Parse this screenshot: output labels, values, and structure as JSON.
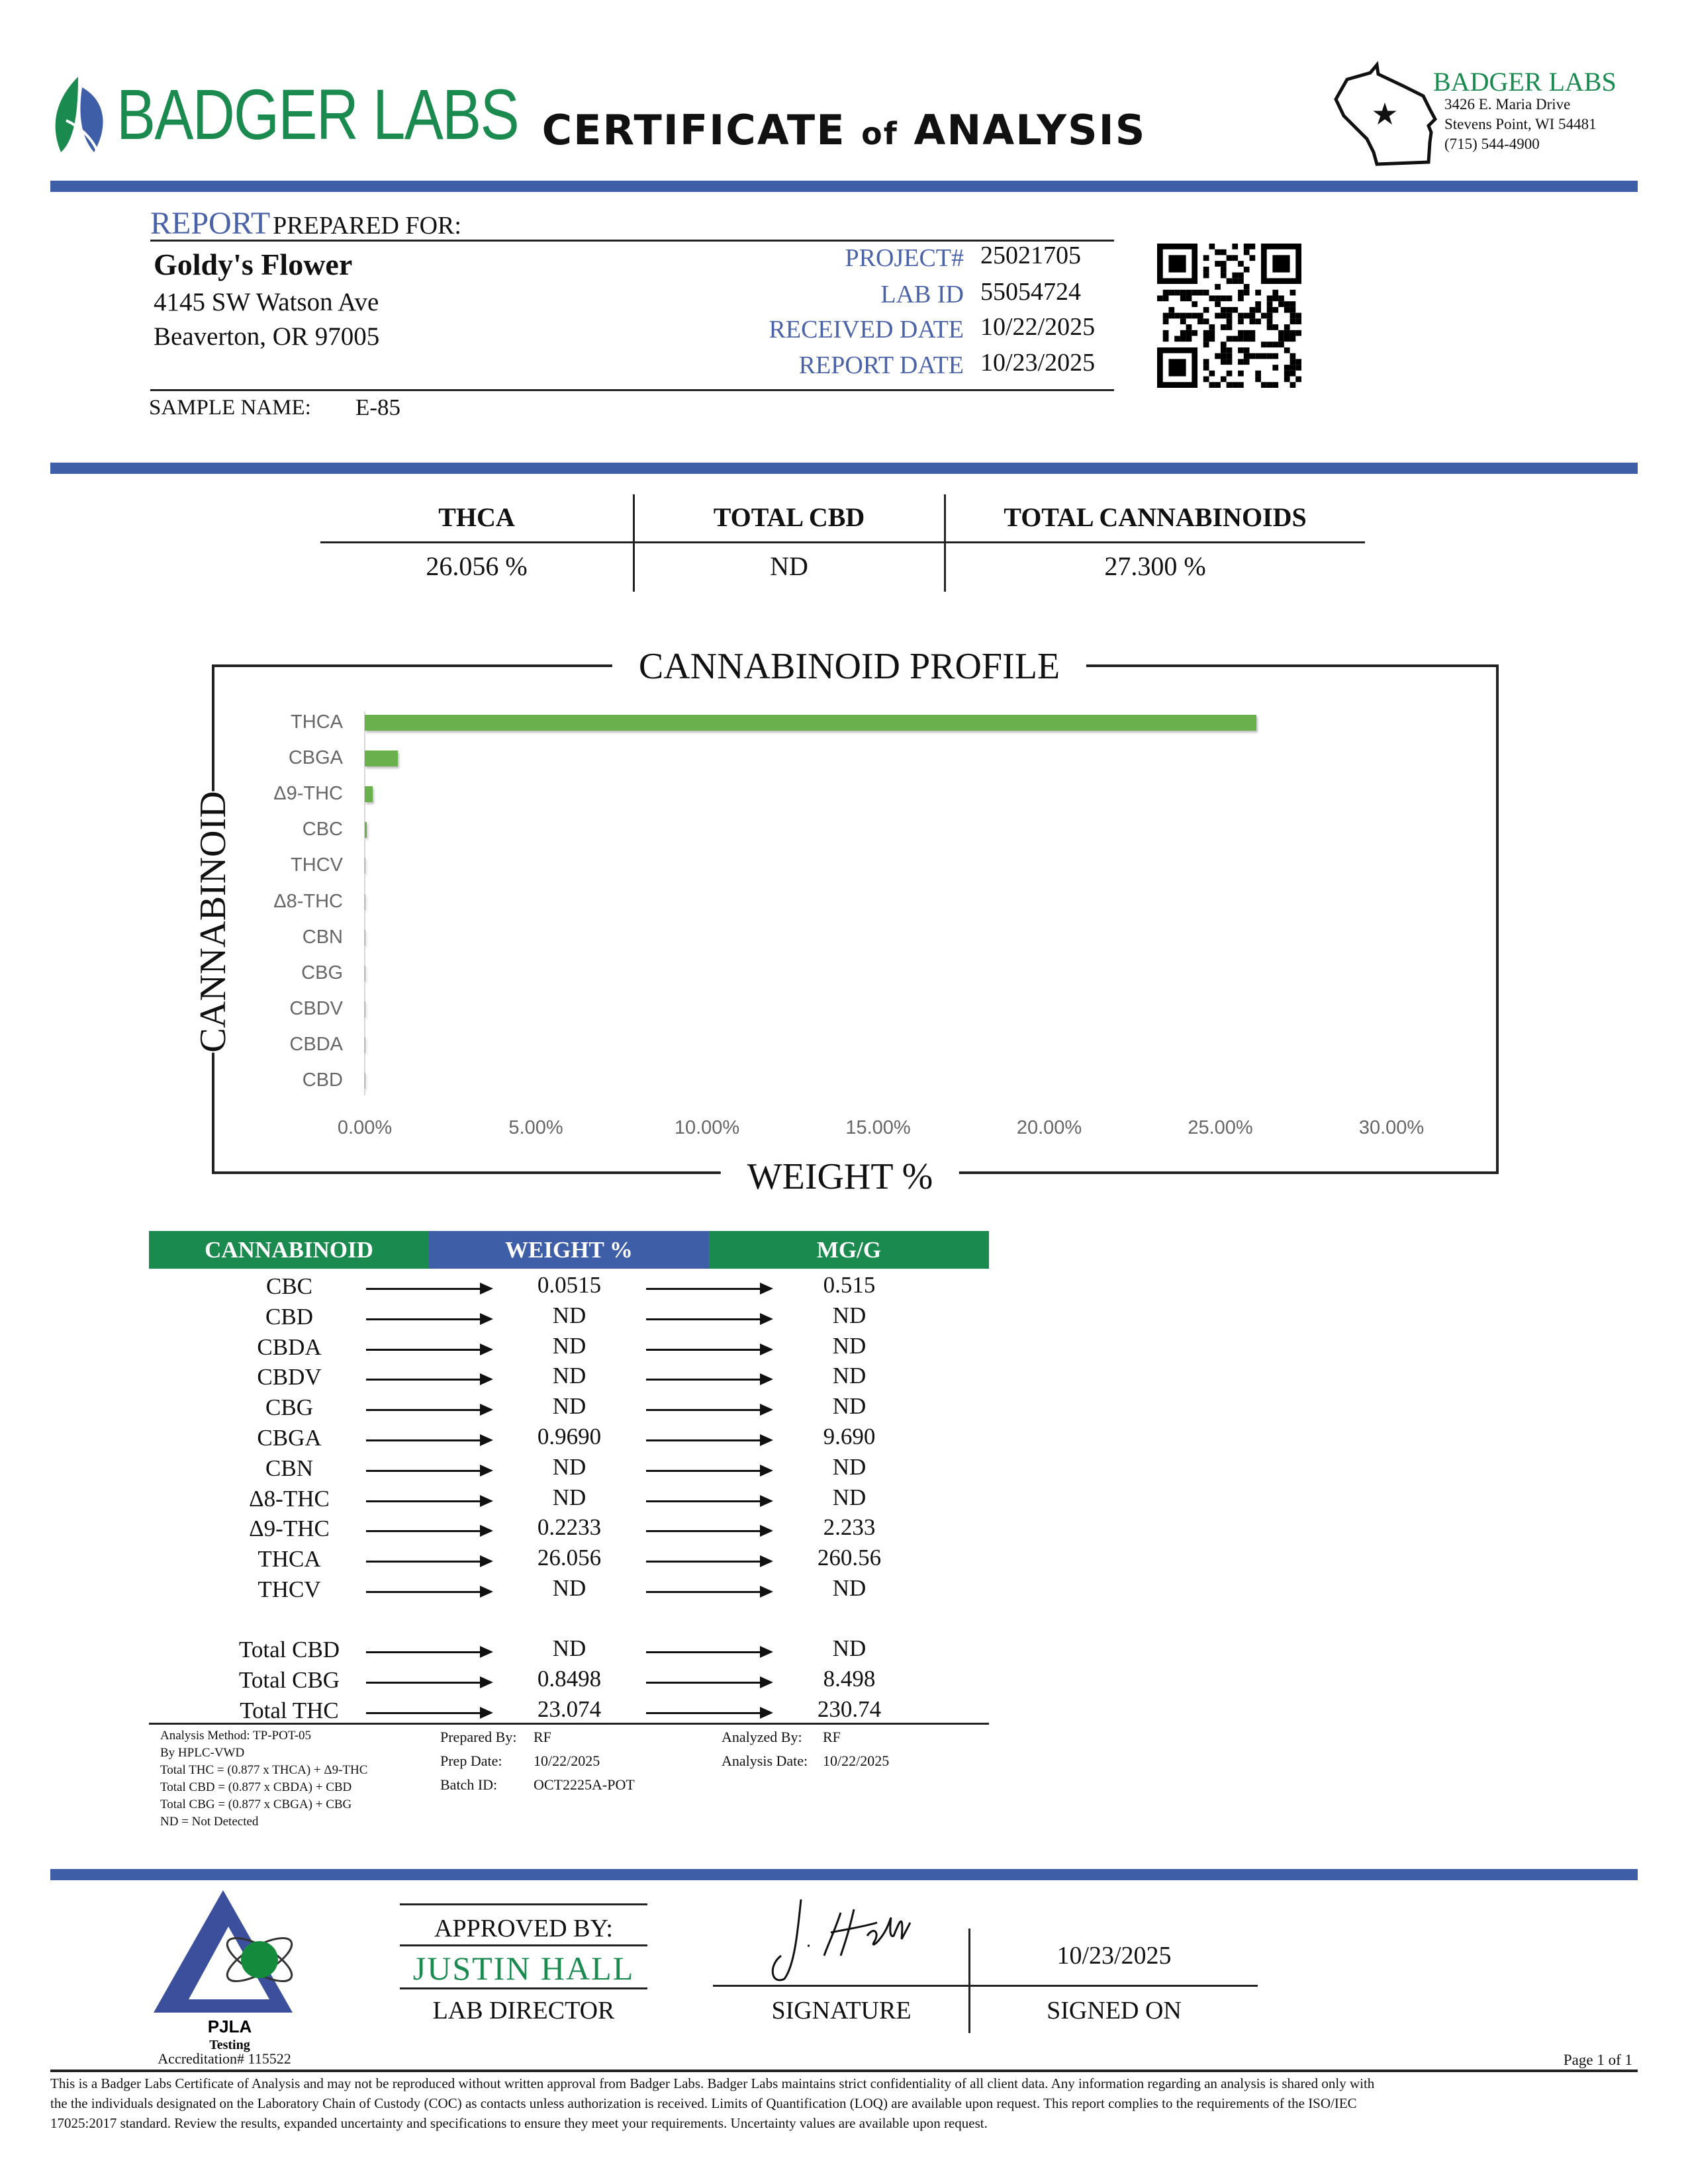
{
  "header": {
    "brand": "BADGER LABS",
    "title_main": "CERTIFICATE",
    "title_of": "of",
    "title_end": "ANALYSIS",
    "lab_name": "BADGER LABS",
    "address1": "3426 E. Maria Drive",
    "address2": "Stevens Point, WI 54481",
    "phone": "(715) 544-4900"
  },
  "colors": {
    "accent_blue": "#3f5ea8",
    "brand_green": "#1a8a4f",
    "bar_green": "#6ab04c"
  },
  "report": {
    "label_report": "REPORT",
    "label_prepared": "PREPARED FOR:",
    "client": "Goldy's Flower",
    "street": "4145 SW Watson Ave",
    "city": "Beaverton, OR 97005",
    "fields": [
      {
        "label": "PROJECT#",
        "value": "25021705"
      },
      {
        "label": "LAB ID",
        "value": "55054724"
      },
      {
        "label": "RECEIVED DATE",
        "value": "10/22/2025"
      },
      {
        "label": "REPORT DATE",
        "value": "10/23/2025"
      }
    ],
    "sample_label": "SAMPLE NAME:",
    "sample_value": "E-85"
  },
  "summary": [
    {
      "label": "THCA",
      "value": "26.056 %"
    },
    {
      "label": "TOTAL CBD",
      "value": "ND"
    },
    {
      "label": "TOTAL CANNABINOIDS",
      "value": "27.300 %"
    }
  ],
  "chart_data": {
    "type": "bar",
    "orientation": "horizontal",
    "title": "CANNABINOID PROFILE",
    "xlabel": "WEIGHT %",
    "ylabel": "CANNABINOID",
    "categories": [
      "THCA",
      "CBGA",
      "Δ9-THC",
      "CBC",
      "THCV",
      "Δ8-THC",
      "CBN",
      "CBG",
      "CBDV",
      "CBDA",
      "CBD"
    ],
    "values": [
      26.056,
      0.969,
      0.2233,
      0.0515,
      0,
      0,
      0,
      0,
      0,
      0,
      0
    ],
    "xlim": [
      0,
      30
    ],
    "xticks": [
      "0.00%",
      "5.00%",
      "10.00%",
      "15.00%",
      "20.00%",
      "25.00%",
      "30.00%"
    ],
    "grid": false
  },
  "table": {
    "headers": [
      "CANNABINOID",
      "WEIGHT %",
      "MG/G"
    ],
    "rows": [
      [
        "CBC",
        "0.0515",
        "0.515"
      ],
      [
        "CBD",
        "ND",
        "ND"
      ],
      [
        "CBDA",
        "ND",
        "ND"
      ],
      [
        "CBDV",
        "ND",
        "ND"
      ],
      [
        "CBG",
        "ND",
        "ND"
      ],
      [
        "CBGA",
        "0.9690",
        "9.690"
      ],
      [
        "CBN",
        "ND",
        "ND"
      ],
      [
        "Δ8-THC",
        "ND",
        "ND"
      ],
      [
        "Δ9-THC",
        "0.2233",
        "2.233"
      ],
      [
        "THCA",
        "26.056",
        "260.56"
      ],
      [
        "THCV",
        "ND",
        "ND"
      ]
    ],
    "totals": [
      [
        "Total CBD",
        "ND",
        "ND"
      ],
      [
        "Total CBG",
        "0.8498",
        "8.498"
      ],
      [
        "Total THC",
        "23.074",
        "230.74"
      ]
    ]
  },
  "notes": {
    "method": [
      "Analysis Method: TP-POT-05",
      "By HPLC-VWD",
      "Total THC = (0.877 x  THCA) + Δ9-THC",
      "Total CBD = (0.877 x  CBDA) + CBD",
      "Total CBG = (0.877 x  CBGA) + CBG",
      "ND = Not Detected"
    ],
    "prep": [
      {
        "label": "Prepared By:",
        "value": "RF"
      },
      {
        "label": "Prep Date:",
        "value": "10/22/2025"
      },
      {
        "label": "Batch ID:",
        "value": "OCT2225A-POT"
      }
    ],
    "analysis": [
      {
        "label": "Analyzed By:",
        "value": "RF"
      },
      {
        "label": "Analysis Date:",
        "value": "10/22/2025"
      }
    ]
  },
  "approval": {
    "approved_by": "APPROVED BY:",
    "name": "JUSTIN HALL",
    "role": "LAB DIRECTOR",
    "signature_label": "SIGNATURE",
    "signed_date": "10/23/2025",
    "signed_on_label": "SIGNED ON"
  },
  "accreditation": {
    "logo_text": "PJLA",
    "logo_sub": "Testing",
    "number": "Accreditation# 115522"
  },
  "footer": {
    "page": "Page 1 of 1",
    "disclaimer": [
      "This is a Badger Labs Certificate of Analysis and may not be reproduced without written approval from Badger Labs. Badger Labs maintains strict confidentiality of all client data. Any information regarding an analysis is shared only with",
      "the the individuals designated on the Laboratory Chain of Custody (COC) as contacts unless authorization is received. Limits of Quantification (LOQ) are available upon request. This report complies to the requirements of the ISO/IEC",
      "17025:2017 standard. Review the results, expanded uncertainty and specifications to ensure they meet your requirements. Uncertainty values are available upon request."
    ]
  }
}
